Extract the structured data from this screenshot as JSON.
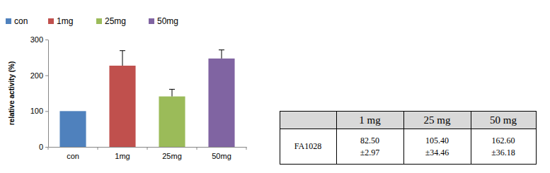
{
  "chart_data": {
    "type": "bar",
    "y_label": "relative activity (%)",
    "categories": [
      "con",
      "1mg",
      "25mg",
      "50mg"
    ],
    "values": [
      100,
      227,
      141,
      247
    ],
    "errors": [
      null,
      42,
      20,
      24
    ],
    "colors": [
      "#4f81bd",
      "#c0504d",
      "#9bbb59",
      "#8064a2"
    ],
    "ylim": [
      0,
      300
    ],
    "yticks": [
      0,
      100,
      200,
      300
    ],
    "grid": false,
    "legend": "top"
  },
  "table": {
    "header": [
      "1 mg",
      "25 mg",
      "50 mg"
    ],
    "rows": [
      {
        "label": "FA1028",
        "cells": [
          [
            "82.50",
            "±2.97"
          ],
          [
            "105.40",
            "±34.46"
          ],
          [
            "162.60",
            "±36.18"
          ]
        ]
      }
    ]
  }
}
